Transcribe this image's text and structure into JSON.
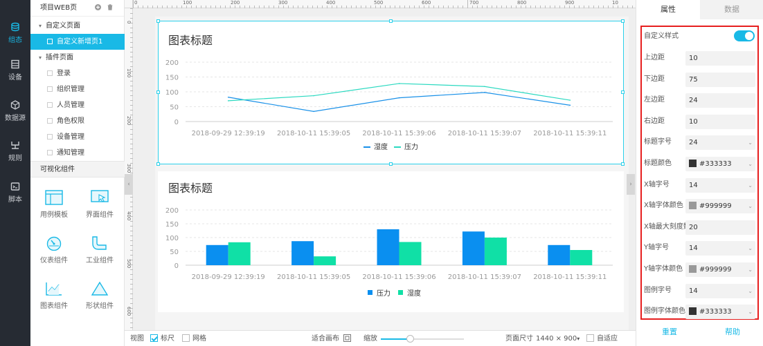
{
  "nav": {
    "items": [
      {
        "label": "组态",
        "icon": "layers-icon",
        "active": true
      },
      {
        "label": "设备",
        "icon": "device-icon",
        "active": false
      },
      {
        "label": "数据源",
        "icon": "cube-icon",
        "active": false
      },
      {
        "label": "规则",
        "icon": "rule-icon",
        "active": false
      },
      {
        "label": "脚本",
        "icon": "script-icon",
        "active": false
      }
    ]
  },
  "tree": {
    "title": "项目WEB页",
    "custom_group": "自定义页面",
    "custom_items": [
      "自定义新增页1"
    ],
    "plugin_group": "插件页面",
    "plugin_items": [
      "登录",
      "组织管理",
      "人员管理",
      "角色权限",
      "设备管理",
      "通知管理"
    ],
    "components_title": "可视化组件",
    "components": [
      "用例模板",
      "界面组件",
      "仪表组件",
      "工业组件",
      "图表组件",
      "形状组件"
    ]
  },
  "ruler": {
    "top": [
      "0",
      "100",
      "200",
      "300",
      "400",
      "500",
      "600",
      "700",
      "800",
      "900",
      "10"
    ],
    "left": [
      "0",
      "100",
      "200",
      "300",
      "400",
      "500",
      "600"
    ]
  },
  "chart_data": [
    {
      "type": "line",
      "title": "图表标题",
      "categories": [
        "2018-09-29 12:39:19",
        "2018-10-11 15:39:05",
        "2018-10-11 15:39:06",
        "2018-10-11 15:39:07",
        "2018-10-11 15:39:11"
      ],
      "series": [
        {
          "name": "湿度",
          "color": "#1890e8",
          "values": [
            82,
            34,
            80,
            98,
            55
          ]
        },
        {
          "name": "压力",
          "color": "#2ad9c0",
          "values": [
            70,
            87,
            128,
            118,
            72
          ]
        }
      ],
      "yticks": [
        "200",
        "150",
        "100",
        "50",
        "0"
      ],
      "ylim": [
        0,
        200
      ],
      "legend": "bottom"
    },
    {
      "type": "bar",
      "title": "图表标题",
      "categories": [
        "2018-09-29 12:39:19",
        "2018-10-11 15:39:05",
        "2018-10-11 15:39:06",
        "2018-10-11 15:39:07",
        "2018-10-11 15:39:11"
      ],
      "series": [
        {
          "name": "压力",
          "color": "#0a8ff0",
          "values": [
            73,
            87,
            130,
            122,
            73
          ]
        },
        {
          "name": "湿度",
          "color": "#10e0a6",
          "values": [
            83,
            32,
            84,
            100,
            55
          ]
        }
      ],
      "yticks": [
        "200",
        "150",
        "100",
        "50",
        "0"
      ],
      "ylim": [
        0,
        200
      ],
      "legend": "bottom"
    }
  ],
  "bottombar": {
    "view": "视图",
    "ruler": "标尺",
    "ruler_checked": true,
    "grid": "网格",
    "grid_checked": false,
    "fit": "适合画布",
    "zoom": "缩放",
    "page_size_label": "页面尺寸",
    "page_size": "1440 × 900",
    "auto_fit": "自适应"
  },
  "props": {
    "tab_attr": "属性",
    "tab_data": "数据",
    "custom_style": "自定义样式",
    "rows": [
      {
        "label": "上边距",
        "value": "10",
        "kind": "text"
      },
      {
        "label": "下边距",
        "value": "75",
        "kind": "text"
      },
      {
        "label": "左边距",
        "value": "24",
        "kind": "text"
      },
      {
        "label": "右边距",
        "value": "10",
        "kind": "text"
      },
      {
        "label": "标题字号",
        "value": "24",
        "kind": "select"
      },
      {
        "label": "标题颜色",
        "value": "#333333",
        "kind": "color",
        "color": "#333333"
      },
      {
        "label": "X轴字号",
        "value": "14",
        "kind": "select"
      },
      {
        "label": "X轴字体颜色",
        "value": "#999999",
        "kind": "color",
        "color": "#999999"
      },
      {
        "label": "X轴最大刻度数",
        "value": "20",
        "kind": "text"
      },
      {
        "label": "Y轴字号",
        "value": "14",
        "kind": "select"
      },
      {
        "label": "Y轴字体颜色",
        "value": "#999999",
        "kind": "color",
        "color": "#999999"
      },
      {
        "label": "图例字号",
        "value": "14",
        "kind": "select"
      },
      {
        "label": "图例字体颜色",
        "value": "#333333",
        "kind": "color",
        "color": "#333333"
      }
    ],
    "reset": "重置",
    "help": "帮助"
  }
}
